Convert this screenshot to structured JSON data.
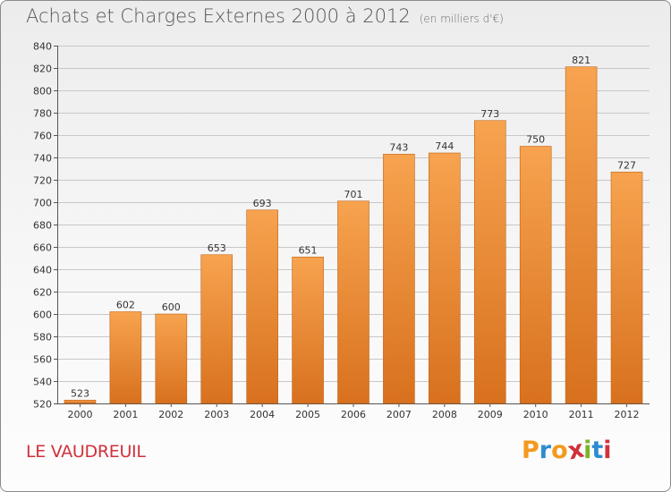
{
  "title": "Achats et Charges Externes 2000 à 2012",
  "subtitle": "(en milliers d'€)",
  "commune": "LE VAUDREUIL",
  "logo": {
    "letters": [
      "P",
      "r",
      "o",
      "x",
      "i",
      "t",
      "i"
    ],
    "colors": [
      "#f39a1e",
      "#2e8ccf",
      "#f39a1e",
      "#d0313b",
      "#7cb52a",
      "#2e8ccf",
      "#d0313b"
    ]
  },
  "colors": {
    "bar_top": "#f7a34f",
    "bar_bottom": "#d8711e",
    "bar_edge": "#c0641a",
    "grid": "#c8c8c8"
  },
  "chart_data": {
    "type": "bar",
    "title": "Achats et Charges Externes 2000 à 2012",
    "subtitle": "(en milliers d'€)",
    "xlabel": "",
    "ylabel": "",
    "categories": [
      "2000",
      "2001",
      "2002",
      "2003",
      "2004",
      "2005",
      "2006",
      "2007",
      "2008",
      "2009",
      "2010",
      "2011",
      "2012"
    ],
    "values": [
      523,
      602,
      600,
      653,
      693,
      651,
      701,
      743,
      744,
      773,
      750,
      821,
      727
    ],
    "ylim": [
      520,
      840
    ],
    "yticks": [
      520,
      540,
      560,
      580,
      600,
      620,
      640,
      660,
      680,
      700,
      720,
      740,
      760,
      780,
      800,
      820,
      840
    ],
    "grid": true,
    "legend": "none"
  }
}
